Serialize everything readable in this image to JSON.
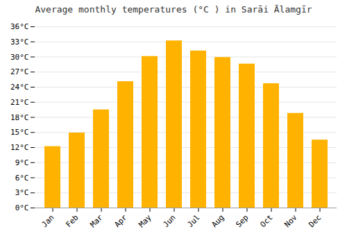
{
  "chart_data": {
    "type": "bar",
    "title": "Average monthly temperatures (°C ) in Sarāi Ālamgīr",
    "categories": [
      "Jan",
      "Feb",
      "Mar",
      "Apr",
      "May",
      "Jun",
      "Jul",
      "Aug",
      "Sep",
      "Oct",
      "Nov",
      "Dec"
    ],
    "values": [
      12.2,
      14.9,
      19.5,
      25.1,
      30.1,
      33.2,
      31.2,
      29.9,
      28.6,
      24.7,
      18.8,
      13.5
    ],
    "color": "#FFB300",
    "ylim": [
      0,
      36
    ],
    "yticks": [
      {
        "value": 0,
        "label": "0°C"
      },
      {
        "value": 3,
        "label": "3°C"
      },
      {
        "value": 6,
        "label": "6°C"
      },
      {
        "value": 9,
        "label": "9°C"
      },
      {
        "value": 12,
        "label": "12°C"
      },
      {
        "value": 15,
        "label": "15°C"
      },
      {
        "value": 18,
        "label": "18°C"
      },
      {
        "value": 21,
        "label": "21°C"
      },
      {
        "value": 24,
        "label": "24°C"
      },
      {
        "value": 27,
        "label": "27°C"
      },
      {
        "value": 30,
        "label": "30°C"
      },
      {
        "value": 33,
        "label": "33°C"
      },
      {
        "value": 36,
        "label": "36°C"
      }
    ],
    "grid": true
  }
}
